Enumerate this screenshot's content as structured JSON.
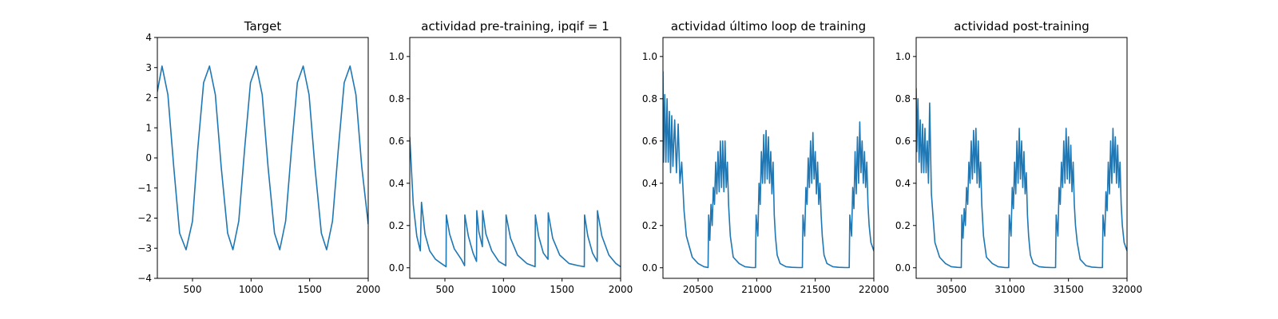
{
  "colors": {
    "series": "#1f77b4",
    "axes": "#000000",
    "background": "#ffffff"
  },
  "chart_data": [
    {
      "type": "line",
      "title": "Target",
      "xlabel": "",
      "ylabel": "",
      "xlim": [
        200,
        2000
      ],
      "ylim": [
        -4,
        4
      ],
      "xticks": [
        500,
        1000,
        1500,
        2000
      ],
      "yticks": [
        -4,
        -3,
        -2,
        -1,
        0,
        1,
        2,
        3,
        4
      ],
      "grid": false,
      "series": [
        {
          "x": [
            200,
            240,
            290,
            340,
            390,
            445,
            500,
            545,
            595,
            645,
            695,
            745,
            800,
            845,
            895,
            945,
            995,
            1045,
            1095,
            1145,
            1200,
            1245,
            1295,
            1345,
            1395,
            1445,
            1495,
            1545,
            1600,
            1645,
            1695,
            1745,
            1795,
            1845,
            1895,
            1945,
            2000
          ],
          "y": [
            2.2,
            3.05,
            2.1,
            -0.3,
            -2.5,
            -3.05,
            -2.1,
            0.3,
            2.5,
            3.05,
            2.1,
            -0.3,
            -2.5,
            -3.05,
            -2.1,
            0.3,
            2.5,
            3.05,
            2.1,
            -0.3,
            -2.5,
            -3.05,
            -2.1,
            0.3,
            2.5,
            3.05,
            2.1,
            -0.3,
            -2.5,
            -3.05,
            -2.1,
            0.3,
            2.5,
            3.05,
            2.1,
            -0.3,
            -2.2
          ]
        }
      ]
    },
    {
      "type": "line",
      "title": "actividad pre-training, ipqif = 1",
      "xlabel": "",
      "ylabel": "",
      "xlim": [
        200,
        2000
      ],
      "ylim": [
        -0.05,
        1.09
      ],
      "xticks": [
        500,
        1000,
        1500,
        2000
      ],
      "yticks": [
        0.0,
        0.2,
        0.4,
        0.6,
        0.8,
        1.0
      ],
      "grid": false,
      "series": [
        {
          "x": [
            200,
            230,
            260,
            290,
            300,
            330,
            370,
            420,
            470,
            510,
            512,
            540,
            580,
            640,
            668,
            670,
            700,
            740,
            770,
            772,
            790,
            820,
            822,
            850,
            900,
            960,
            1020,
            1022,
            1060,
            1120,
            1200,
            1270,
            1272,
            1300,
            1340,
            1380,
            1382,
            1420,
            1480,
            1560,
            1640,
            1690,
            1692,
            1720,
            1760,
            1800,
            1802,
            1840,
            1900,
            1960,
            2000
          ],
          "y": [
            0.62,
            0.3,
            0.15,
            0.08,
            0.31,
            0.16,
            0.08,
            0.04,
            0.02,
            0.005,
            0.25,
            0.16,
            0.09,
            0.04,
            0.01,
            0.25,
            0.15,
            0.07,
            0.03,
            0.27,
            0.17,
            0.1,
            0.27,
            0.16,
            0.08,
            0.03,
            0.01,
            0.25,
            0.14,
            0.06,
            0.02,
            0.005,
            0.25,
            0.15,
            0.07,
            0.04,
            0.26,
            0.14,
            0.06,
            0.02,
            0.01,
            0.005,
            0.25,
            0.15,
            0.07,
            0.03,
            0.27,
            0.15,
            0.06,
            0.02,
            0.005
          ]
        }
      ]
    },
    {
      "type": "line",
      "title": "actividad último loop de training",
      "xlabel": "",
      "ylabel": "",
      "xlim": [
        20200,
        22000
      ],
      "ylim": [
        -0.05,
        1.09
      ],
      "xticks": [
        20500,
        21000,
        21500,
        22000
      ],
      "yticks": [
        0.0,
        0.2,
        0.4,
        0.6,
        0.8,
        1.0
      ],
      "grid": false,
      "series": [
        {
          "x": [
            20200,
            20205,
            20215,
            20225,
            20235,
            20245,
            20255,
            20265,
            20275,
            20285,
            20300,
            20315,
            20330,
            20345,
            20360,
            20380,
            20400,
            20450,
            20500,
            20550,
            20585,
            20590,
            20600,
            20610,
            20620,
            20630,
            20640,
            20650,
            20660,
            20670,
            20680,
            20690,
            20700,
            20710,
            20720,
            20730,
            20740,
            20750,
            20760,
            20775,
            20800,
            20850,
            20900,
            20960,
            20990,
            20995,
            21010,
            21020,
            21030,
            21040,
            21050,
            21060,
            21070,
            21080,
            21090,
            21100,
            21110,
            21120,
            21130,
            21140,
            21150,
            21160,
            21175,
            21200,
            21250,
            21300,
            21360,
            21390,
            21395,
            21410,
            21420,
            21430,
            21440,
            21450,
            21460,
            21470,
            21480,
            21490,
            21500,
            21510,
            21520,
            21530,
            21540,
            21550,
            21560,
            21575,
            21600,
            21650,
            21700,
            21760,
            21790,
            21795,
            21810,
            21820,
            21830,
            21840,
            21850,
            21860,
            21870,
            21880,
            21890,
            21900,
            21910,
            21920,
            21930,
            21940,
            21950,
            21960,
            21975,
            22000
          ],
          "y": [
            0.93,
            0.5,
            0.82,
            0.5,
            0.8,
            0.5,
            0.74,
            0.45,
            0.72,
            0.48,
            0.7,
            0.45,
            0.68,
            0.4,
            0.5,
            0.27,
            0.15,
            0.05,
            0.02,
            0.005,
            0.001,
            0.25,
            0.13,
            0.3,
            0.2,
            0.38,
            0.3,
            0.5,
            0.35,
            0.55,
            0.36,
            0.6,
            0.38,
            0.6,
            0.36,
            0.6,
            0.38,
            0.5,
            0.3,
            0.15,
            0.05,
            0.02,
            0.005,
            0.001,
            0.001,
            0.25,
            0.15,
            0.4,
            0.3,
            0.55,
            0.4,
            0.63,
            0.4,
            0.65,
            0.42,
            0.62,
            0.4,
            0.55,
            0.35,
            0.5,
            0.25,
            0.15,
            0.06,
            0.02,
            0.005,
            0.002,
            0.001,
            0.001,
            0.25,
            0.15,
            0.38,
            0.3,
            0.52,
            0.38,
            0.6,
            0.4,
            0.64,
            0.42,
            0.55,
            0.35,
            0.5,
            0.3,
            0.4,
            0.25,
            0.15,
            0.06,
            0.02,
            0.005,
            0.002,
            0.001,
            0.001,
            0.25,
            0.15,
            0.38,
            0.28,
            0.55,
            0.35,
            0.62,
            0.4,
            0.69,
            0.45,
            0.6,
            0.4,
            0.55,
            0.38,
            0.5,
            0.3,
            0.2,
            0.12,
            0.08
          ]
        }
      ]
    },
    {
      "type": "line",
      "title": "actividad post-training",
      "xlabel": "",
      "ylabel": "",
      "xlim": [
        30200,
        32000
      ],
      "ylim": [
        -0.05,
        1.09
      ],
      "xticks": [
        30500,
        31000,
        31500,
        32000
      ],
      "yticks": [
        0.0,
        0.2,
        0.4,
        0.6,
        0.8,
        1.0
      ],
      "grid": false,
      "series": [
        {
          "x": [
            30200,
            30205,
            30215,
            30225,
            30235,
            30245,
            30255,
            30265,
            30275,
            30285,
            30295,
            30305,
            30315,
            30330,
            30360,
            30400,
            30450,
            30500,
            30550,
            30585,
            30590,
            30600,
            30610,
            30620,
            30630,
            30640,
            30650,
            30660,
            30670,
            30680,
            30690,
            30700,
            30710,
            30720,
            30730,
            30740,
            30750,
            30760,
            30775,
            30800,
            30850,
            30900,
            30960,
            30990,
            30995,
            31010,
            31020,
            31030,
            31040,
            31050,
            31060,
            31070,
            31080,
            31090,
            31100,
            31110,
            31120,
            31130,
            31140,
            31150,
            31160,
            31175,
            31200,
            31250,
            31300,
            31360,
            31390,
            31395,
            31410,
            31420,
            31430,
            31440,
            31450,
            31460,
            31470,
            31480,
            31490,
            31500,
            31510,
            31520,
            31530,
            31540,
            31550,
            31560,
            31575,
            31600,
            31650,
            31700,
            31760,
            31790,
            31795,
            31810,
            31820,
            31830,
            31840,
            31850,
            31860,
            31870,
            31880,
            31890,
            31900,
            31910,
            31920,
            31930,
            31940,
            31950,
            31960,
            31975,
            32000
          ],
          "y": [
            0.85,
            0.55,
            0.8,
            0.5,
            0.7,
            0.45,
            0.68,
            0.45,
            0.66,
            0.45,
            0.6,
            0.4,
            0.78,
            0.35,
            0.12,
            0.05,
            0.02,
            0.005,
            0.002,
            0.001,
            0.25,
            0.14,
            0.28,
            0.2,
            0.38,
            0.3,
            0.5,
            0.4,
            0.6,
            0.42,
            0.65,
            0.45,
            0.66,
            0.4,
            0.6,
            0.38,
            0.5,
            0.3,
            0.15,
            0.05,
            0.02,
            0.005,
            0.001,
            0.001,
            0.25,
            0.15,
            0.38,
            0.28,
            0.5,
            0.35,
            0.6,
            0.4,
            0.66,
            0.42,
            0.6,
            0.38,
            0.55,
            0.35,
            0.45,
            0.25,
            0.15,
            0.06,
            0.02,
            0.005,
            0.002,
            0.001,
            0.001,
            0.25,
            0.15,
            0.38,
            0.3,
            0.5,
            0.38,
            0.6,
            0.4,
            0.66,
            0.42,
            0.62,
            0.4,
            0.58,
            0.36,
            0.5,
            0.3,
            0.2,
            0.12,
            0.04,
            0.01,
            0.003,
            0.001,
            0.001,
            0.25,
            0.15,
            0.36,
            0.27,
            0.5,
            0.35,
            0.6,
            0.4,
            0.66,
            0.45,
            0.62,
            0.4,
            0.58,
            0.38,
            0.5,
            0.3,
            0.2,
            0.12,
            0.08
          ]
        }
      ]
    }
  ]
}
